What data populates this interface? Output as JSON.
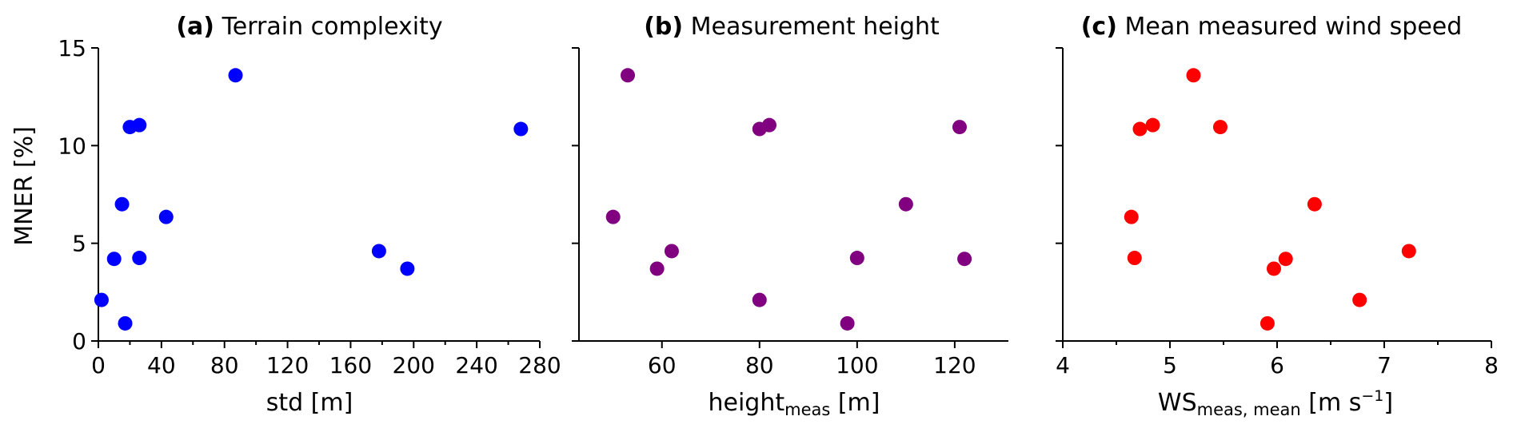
{
  "chart_data": [
    {
      "type": "scatter",
      "title_bold": "(a)",
      "title": "Terrain complexity",
      "xlabel": "std [m]",
      "ylabel": "MNER [%]",
      "xlim": [
        0,
        280
      ],
      "ylim": [
        0,
        15
      ],
      "xticks": [
        0,
        40,
        80,
        120,
        160,
        200,
        240,
        280
      ],
      "yticks": [
        0,
        5,
        10,
        15
      ],
      "color": "#0000ff",
      "points": [
        {
          "x": 2,
          "y": 2.1
        },
        {
          "x": 17,
          "y": 0.9
        },
        {
          "x": 10,
          "y": 4.2
        },
        {
          "x": 15,
          "y": 7.0
        },
        {
          "x": 20,
          "y": 10.95
        },
        {
          "x": 26,
          "y": 11.05
        },
        {
          "x": 26,
          "y": 4.25
        },
        {
          "x": 43,
          "y": 6.35
        },
        {
          "x": 87,
          "y": 13.6
        },
        {
          "x": 178,
          "y": 4.6
        },
        {
          "x": 196,
          "y": 3.7
        },
        {
          "x": 268,
          "y": 10.85
        }
      ]
    },
    {
      "type": "scatter",
      "title_bold": "(b)",
      "title": "Measurement height",
      "xlabel_main": "height",
      "xlabel_sub": "meas",
      "xlabel_tail": " [m]",
      "xlim": [
        43,
        131
      ],
      "ylim": [
        0,
        15
      ],
      "xticks": [
        60,
        80,
        100,
        120
      ],
      "yticks": [
        0,
        5,
        10,
        15
      ],
      "color": "#800080",
      "points": [
        {
          "x": 53,
          "y": 13.6
        },
        {
          "x": 50,
          "y": 6.35
        },
        {
          "x": 59,
          "y": 3.7
        },
        {
          "x": 62,
          "y": 4.6
        },
        {
          "x": 80,
          "y": 10.85
        },
        {
          "x": 82,
          "y": 11.05
        },
        {
          "x": 80,
          "y": 2.1
        },
        {
          "x": 98,
          "y": 0.9
        },
        {
          "x": 100,
          "y": 4.25
        },
        {
          "x": 110,
          "y": 7.0
        },
        {
          "x": 121,
          "y": 10.95
        },
        {
          "x": 122,
          "y": 4.2
        }
      ]
    },
    {
      "type": "scatter",
      "title_bold": "(c)",
      "title": "Mean measured wind speed",
      "xlabel_main": "WS",
      "xlabel_sub": "meas, mean",
      "xlabel_tail": " [m s",
      "xlabel_sup": "−1",
      "xlabel_end": "]",
      "xlim": [
        4,
        8
      ],
      "ylim": [
        0,
        15
      ],
      "xticks": [
        4,
        5,
        6,
        7,
        8
      ],
      "yticks": [
        0,
        5,
        10,
        15
      ],
      "color": "#ff0000",
      "points": [
        {
          "x": 5.22,
          "y": 13.6
        },
        {
          "x": 4.72,
          "y": 10.85
        },
        {
          "x": 4.84,
          "y": 11.05
        },
        {
          "x": 5.47,
          "y": 10.95
        },
        {
          "x": 4.64,
          "y": 6.35
        },
        {
          "x": 4.67,
          "y": 4.25
        },
        {
          "x": 6.35,
          "y": 7.0
        },
        {
          "x": 5.97,
          "y": 3.7
        },
        {
          "x": 6.08,
          "y": 4.2
        },
        {
          "x": 7.23,
          "y": 4.6
        },
        {
          "x": 6.77,
          "y": 2.1
        },
        {
          "x": 5.91,
          "y": 0.9
        }
      ]
    }
  ]
}
